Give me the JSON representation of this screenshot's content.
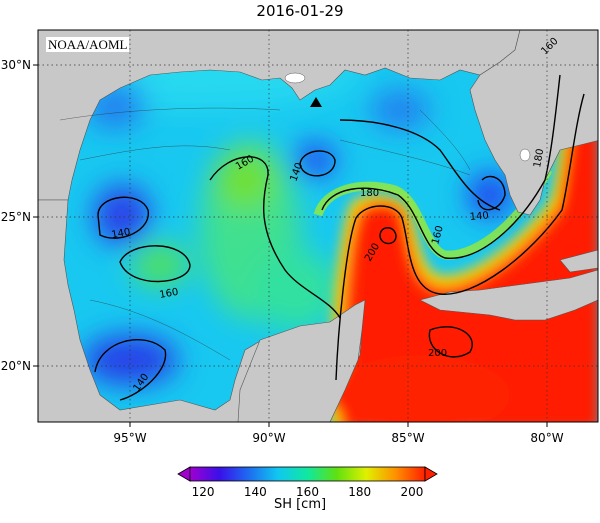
{
  "title": "2016-01-29",
  "source_label": "NOAA/AOML",
  "colorbar": {
    "title": "SH [cm]",
    "ticks": [
      "120",
      "140",
      "160",
      "180",
      "200"
    ],
    "min": 115,
    "max": 205,
    "colors": [
      "#a000d0",
      "#3a10e8",
      "#1e6cf0",
      "#10c8f0",
      "#10e8a0",
      "#60e010",
      "#e0f000",
      "#ff9000",
      "#ff2000"
    ]
  },
  "map": {
    "lon_range": [
      -98,
      -78
    ],
    "lat_range": [
      18,
      31
    ],
    "x_ticks": [
      "95°W",
      "90°W",
      "85°W",
      "80°W"
    ],
    "y_ticks": [
      "20°N",
      "25°N",
      "30°N"
    ],
    "land_color": "#c8c8c8",
    "contour_labels": [
      "140",
      "140",
      "140",
      "140",
      "160",
      "160",
      "160",
      "160",
      "180",
      "180",
      "200",
      "200"
    ],
    "marker": "station-triangle"
  }
}
